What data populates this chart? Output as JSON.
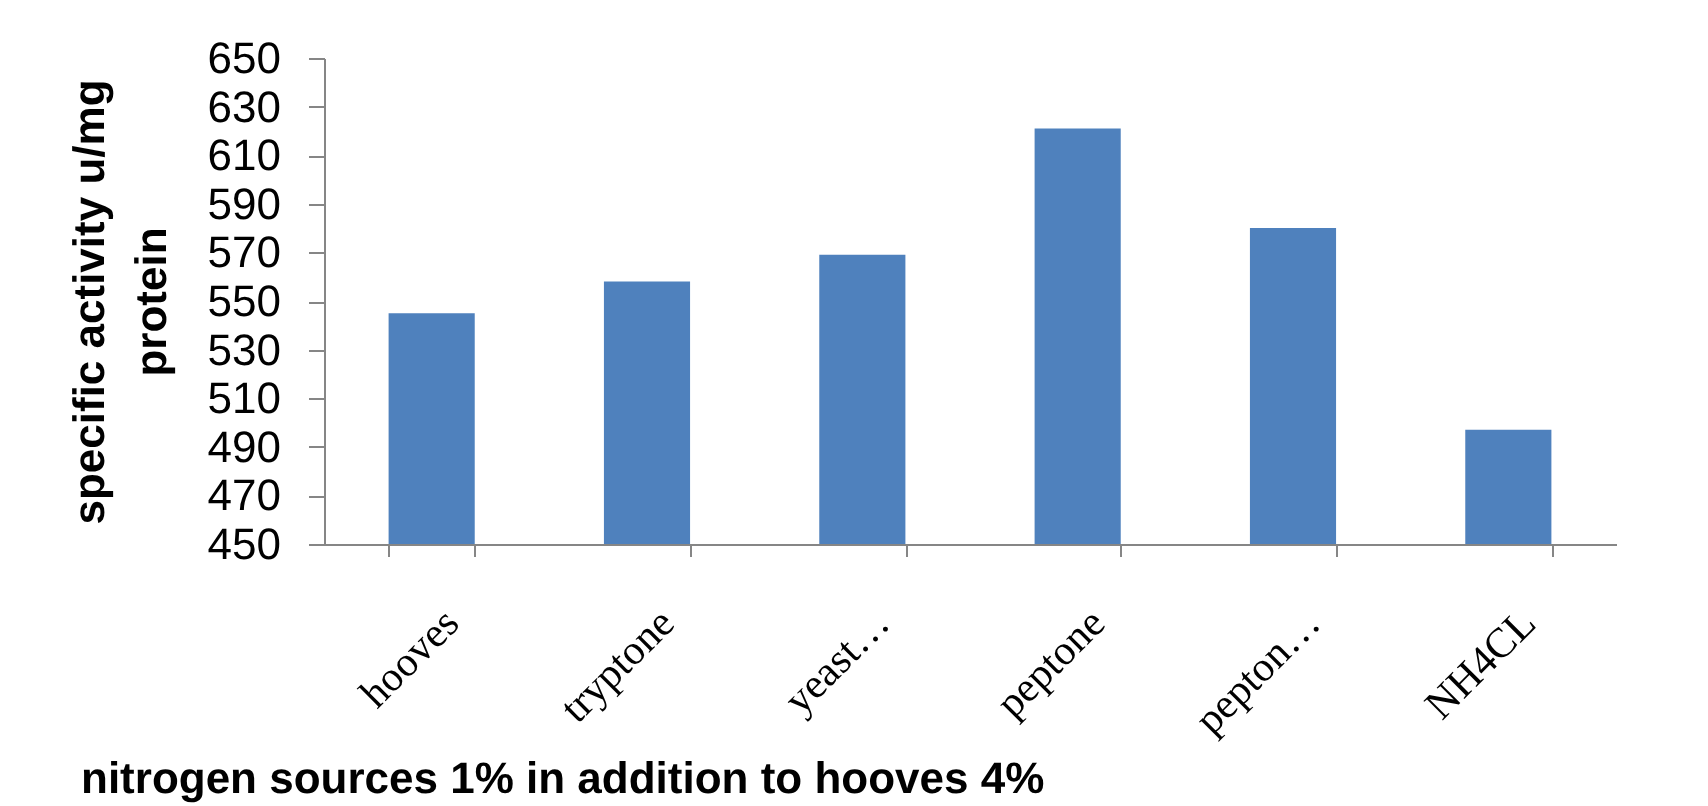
{
  "chart_data": {
    "type": "bar",
    "xlabel": "nitrogen sources 1% in addition to hooves 4%",
    "ylabel": "specific activity u/mg protein",
    "categories": [
      "hooves",
      "tryptone",
      "yeast…",
      "peptone",
      "pepton…",
      "NH4CL"
    ],
    "values": [
      545,
      558,
      569,
      621,
      580,
      497
    ],
    "color": "#4f81bd",
    "ylim": [
      450,
      650
    ],
    "yticks": [
      450,
      470,
      490,
      510,
      530,
      550,
      570,
      590,
      610,
      630,
      650
    ],
    "grid": false
  }
}
